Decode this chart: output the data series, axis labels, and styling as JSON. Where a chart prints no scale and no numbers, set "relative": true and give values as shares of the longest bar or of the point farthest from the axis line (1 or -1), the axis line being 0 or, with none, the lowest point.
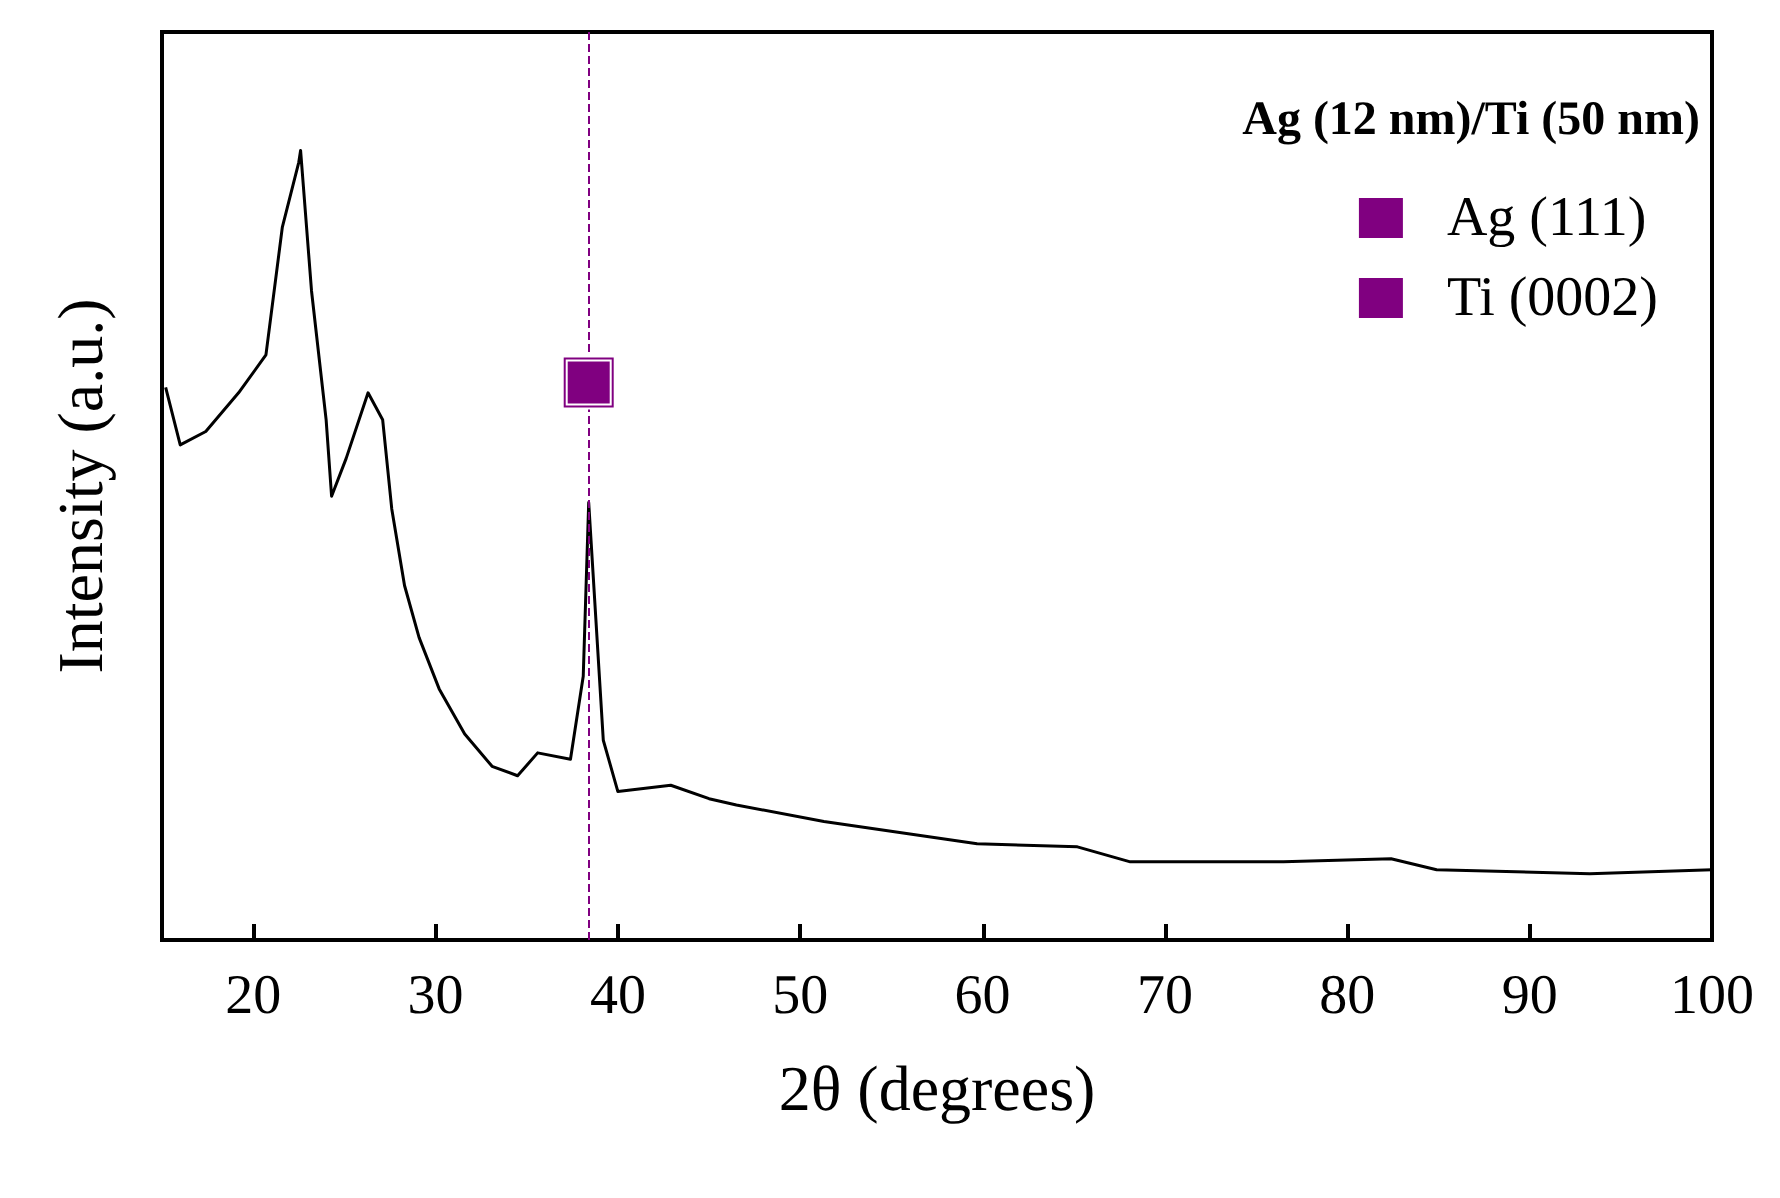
{
  "chart_data": {
    "type": "line",
    "relative": true,
    "xlabel": "2θ (degrees)",
    "ylabel": "Intensity (a.u.)",
    "legend_title": "Ag (12 nm)/Ti (50 nm)",
    "legend": "top right",
    "grid": false,
    "tick_labels": "x",
    "xlim": [
      15,
      100
    ],
    "xticks": [
      20,
      30,
      40,
      50,
      60,
      70,
      80,
      90,
      100
    ],
    "ref_lines": [
      {
        "axis": "x",
        "value": 38.4,
        "color": "#800080",
        "line_style": "dashed"
      }
    ],
    "series": [
      {
        "color": "#000000",
        "marker": "none",
        "x": [
          15.2,
          16,
          17.4,
          19.2,
          20.7,
          21.6,
          22.5,
          22.6,
          23.2,
          24.0,
          24.3,
          25.1,
          26.3,
          27.1,
          27.6,
          28.3,
          29.1,
          30.2,
          31.6,
          33.1,
          34.5,
          35.6,
          37.4,
          38.1,
          38.4,
          39.2,
          40.0,
          42.9,
          45,
          46.5,
          51.3,
          59.7,
          65.2,
          68.1,
          76.5,
          82.4,
          84.9,
          93.3,
          100
        ],
        "values": [
          0.7,
          0.627,
          0.644,
          0.693,
          0.741,
          0.903,
          0.985,
          1,
          0.822,
          0.659,
          0.562,
          0.61,
          0.693,
          0.659,
          0.546,
          0.449,
          0.383,
          0.318,
          0.261,
          0.22,
          0.208,
          0.237,
          0.229,
          0.334,
          0.554,
          0.253,
          0.188,
          0.196,
          0.179,
          0.171,
          0.15,
          0.122,
          0.118,
          0.099,
          0.099,
          0.103,
          0.089,
          0.084,
          0.089
        ]
      },
      {
        "type": "scatter",
        "name": "Ag (111)",
        "color": "#800080",
        "marker": "square",
        "x": [
          38.4
        ],
        "values": [
          0.706
        ]
      },
      {
        "type": "scatter",
        "name": "Ti (0002)",
        "color": "#800080",
        "marker": "square",
        "x": [
          38.4
        ],
        "values": [
          0.706
        ]
      }
    ]
  }
}
